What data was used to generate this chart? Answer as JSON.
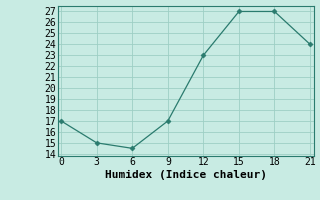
{
  "x": [
    0,
    3,
    6,
    9,
    12,
    15,
    18,
    21
  ],
  "y": [
    17,
    15,
    14.5,
    17,
    23,
    27,
    27,
    24
  ],
  "xlabel": "Humidex (Indice chaleur)",
  "ylim": [
    13.8,
    27.5
  ],
  "xlim": [
    -0.3,
    21.3
  ],
  "yticks": [
    14,
    15,
    16,
    17,
    18,
    19,
    20,
    21,
    22,
    23,
    24,
    25,
    26,
    27
  ],
  "xticks": [
    0,
    3,
    6,
    9,
    12,
    15,
    18,
    21
  ],
  "line_color": "#2a7b6e",
  "marker": "D",
  "marker_size": 2.5,
  "background_color": "#c8ebe3",
  "grid_color": "#9ecfc4",
  "xlabel_fontsize": 8,
  "tick_fontsize": 7
}
